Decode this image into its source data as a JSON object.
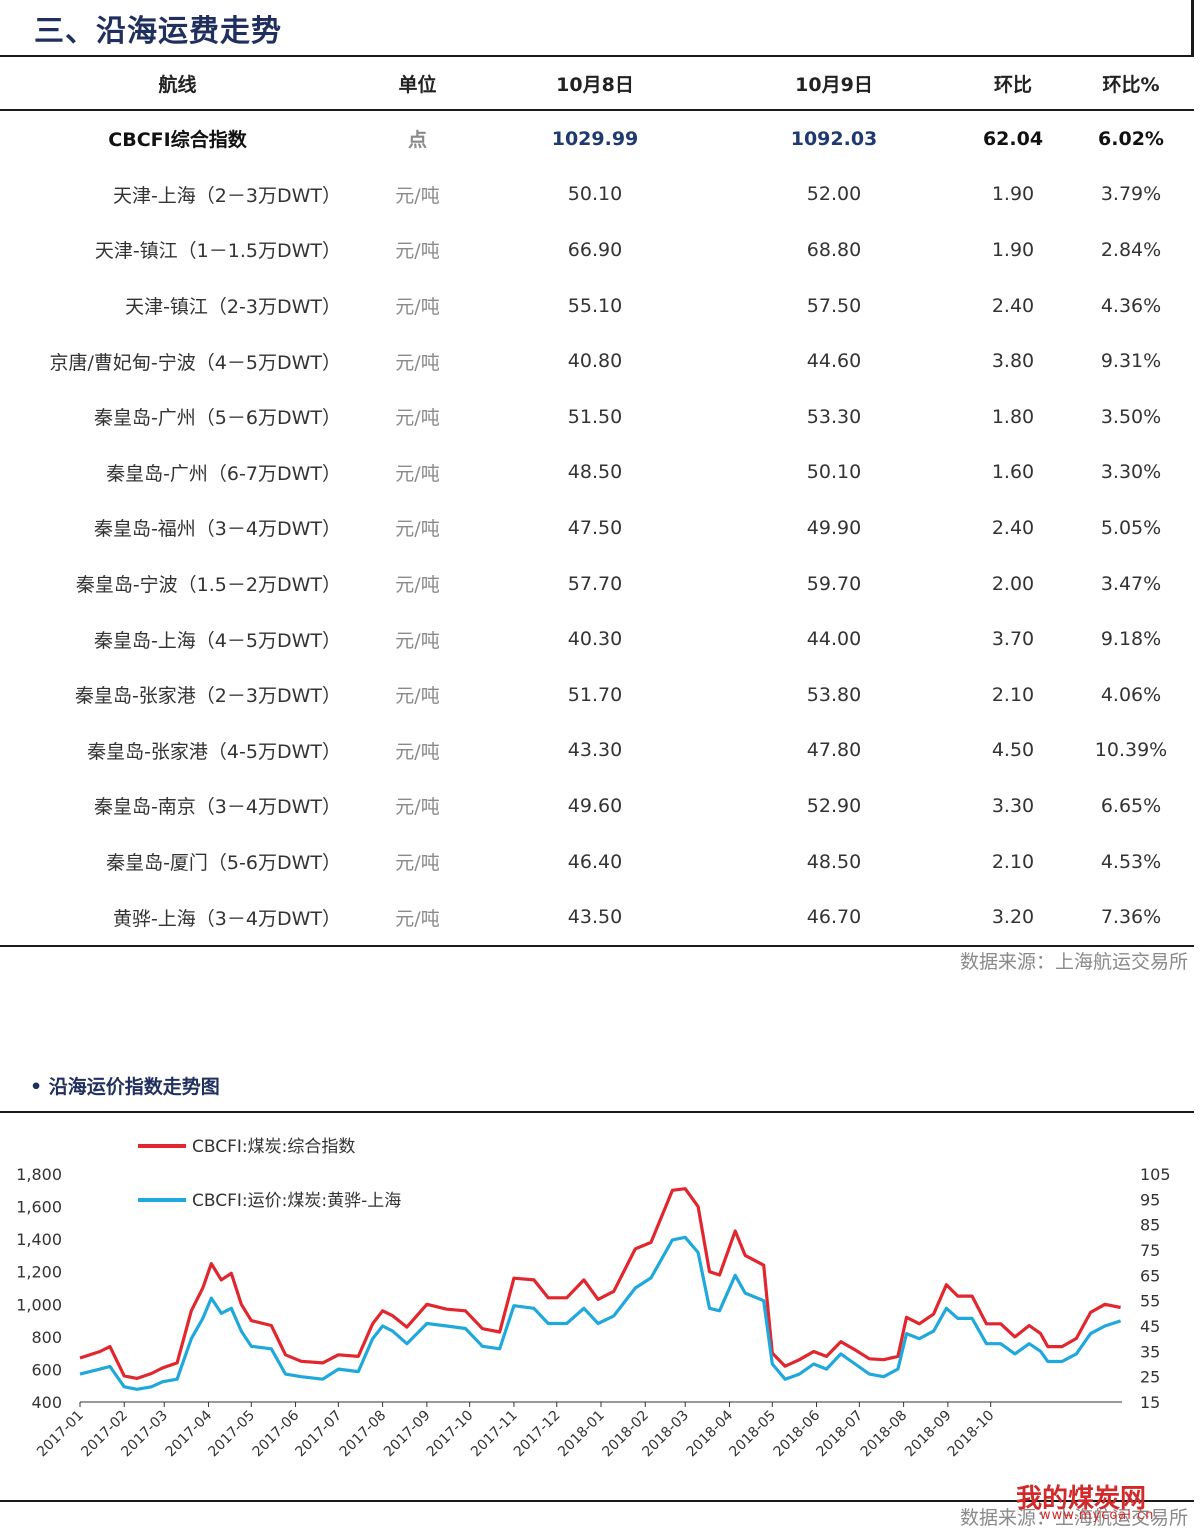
{
  "section_title": "三、沿海运费走势",
  "table": {
    "headers": [
      "航线",
      "单位",
      "10月8日",
      "10月9日",
      "环比",
      "环比%"
    ],
    "index_row": [
      "CBCFI综合指数",
      "点",
      "1029.99",
      "1092.03",
      "62.04",
      "6.02%"
    ],
    "rows": [
      [
        "天津-上海（2－3万DWT）",
        "元/吨",
        "50.10",
        "52.00",
        "1.90",
        "3.79%"
      ],
      [
        "天津-镇江（1－1.5万DWT）",
        "元/吨",
        "66.90",
        "68.80",
        "1.90",
        "2.84%"
      ],
      [
        "天津-镇江（2-3万DWT）",
        "元/吨",
        "55.10",
        "57.50",
        "2.40",
        "4.36%"
      ],
      [
        "京唐/曹妃甸-宁波（4－5万DWT）",
        "元/吨",
        "40.80",
        "44.60",
        "3.80",
        "9.31%"
      ],
      [
        "秦皇岛-广州（5－6万DWT）",
        "元/吨",
        "51.50",
        "53.30",
        "1.80",
        "3.50%"
      ],
      [
        "秦皇岛-广州（6-7万DWT）",
        "元/吨",
        "48.50",
        "50.10",
        "1.60",
        "3.30%"
      ],
      [
        "秦皇岛-福州（3－4万DWT）",
        "元/吨",
        "47.50",
        "49.90",
        "2.40",
        "5.05%"
      ],
      [
        "秦皇岛-宁波（1.5－2万DWT）",
        "元/吨",
        "57.70",
        "59.70",
        "2.00",
        "3.47%"
      ],
      [
        "秦皇岛-上海（4－5万DWT）",
        "元/吨",
        "40.30",
        "44.00",
        "3.70",
        "9.18%"
      ],
      [
        "秦皇岛-张家港（2－3万DWT）",
        "元/吨",
        "51.70",
        "53.80",
        "2.10",
        "4.06%"
      ],
      [
        "秦皇岛-张家港（4-5万DWT）",
        "元/吨",
        "43.30",
        "47.80",
        "4.50",
        "10.39%"
      ],
      [
        "秦皇岛-南京（3－4万DWT）",
        "元/吨",
        "49.60",
        "52.90",
        "3.30",
        "6.65%"
      ],
      [
        "秦皇岛-厦门（5-6万DWT）",
        "元/吨",
        "46.40",
        "48.50",
        "2.10",
        "4.53%"
      ],
      [
        "黄骅-上海（3－4万DWT）",
        "元/吨",
        "43.50",
        "46.70",
        "3.20",
        "7.36%"
      ]
    ]
  },
  "source_text": "数据来源：上海航运交易所",
  "chart_title": "• 沿海运价指数走势图",
  "watermark": {
    "text": "我的煤炭网",
    "sub": "www.mycoal.cn"
  },
  "chart_data": {
    "type": "line",
    "x": [
      "2017-01",
      "2017-02",
      "2017-03",
      "2017-04",
      "2017-05",
      "2017-06",
      "2017-07",
      "2017-08",
      "2017-09",
      "2017-10",
      "2017-11",
      "2017-12",
      "2018-01",
      "2018-02",
      "2018-03",
      "2018-04",
      "2018-05",
      "2018-06",
      "2018-07",
      "2018-08",
      "2018-09",
      "2018-10"
    ],
    "x_tick_labels": [
      "2017-01",
      "2017-02",
      "2017-03",
      "2017-04",
      "2017-05",
      "2017-06",
      "2017-07",
      "2017-08",
      "2017-09",
      "2017-10",
      "2017-11",
      "2017-12",
      "2018-01",
      "2018-02",
      "2018-03",
      "2018-04",
      "2018-05",
      "2018-06",
      "2018-07",
      "2018-08",
      "2018-09",
      "2018-10"
    ],
    "y_left_ticks": [
      "1,800",
      "1,600",
      "1,400",
      "1,200",
      "1,000",
      "800",
      "600",
      "400"
    ],
    "y_right_ticks": [
      "105",
      "95",
      "85",
      "75",
      "65",
      "55",
      "45",
      "35",
      "25",
      "15"
    ],
    "ylim_left": [
      400,
      1800
    ],
    "ylim_right": [
      15,
      105
    ],
    "legend_position": "top-left",
    "grid": false,
    "series": [
      {
        "name": "CBCFI:煤炭:综合指数",
        "axis": "left",
        "color": "#e1262d",
        "points": [
          [
            "2017-01-01",
            670
          ],
          [
            "2017-01-15",
            710
          ],
          [
            "2017-01-22",
            740
          ],
          [
            "2017-02-01",
            560
          ],
          [
            "2017-02-10",
            545
          ],
          [
            "2017-02-20",
            575
          ],
          [
            "2017-02-28",
            610
          ],
          [
            "2017-03-10",
            640
          ],
          [
            "2017-03-20",
            960
          ],
          [
            "2017-03-28",
            1100
          ],
          [
            "2017-04-03",
            1250
          ],
          [
            "2017-04-10",
            1150
          ],
          [
            "2017-04-17",
            1190
          ],
          [
            "2017-04-24",
            1000
          ],
          [
            "2017-05-01",
            900
          ],
          [
            "2017-05-15",
            870
          ],
          [
            "2017-05-25",
            690
          ],
          [
            "2017-06-05",
            650
          ],
          [
            "2017-06-20",
            640
          ],
          [
            "2017-07-01",
            690
          ],
          [
            "2017-07-15",
            680
          ],
          [
            "2017-07-25",
            880
          ],
          [
            "2017-08-01",
            960
          ],
          [
            "2017-08-08",
            930
          ],
          [
            "2017-08-18",
            860
          ],
          [
            "2017-09-01",
            1000
          ],
          [
            "2017-09-15",
            970
          ],
          [
            "2017-09-28",
            960
          ],
          [
            "2017-10-10",
            850
          ],
          [
            "2017-10-22",
            830
          ],
          [
            "2017-11-01",
            1160
          ],
          [
            "2017-11-15",
            1150
          ],
          [
            "2017-11-25",
            1040
          ],
          [
            "2017-12-08",
            1040
          ],
          [
            "2017-12-20",
            1150
          ],
          [
            "2017-12-30",
            1030
          ],
          [
            "2018-01-10",
            1080
          ],
          [
            "2018-01-25",
            1340
          ],
          [
            "2018-02-05",
            1380
          ],
          [
            "2018-02-20",
            1700
          ],
          [
            "2018-03-01",
            1710
          ],
          [
            "2018-03-10",
            1600
          ],
          [
            "2018-03-18",
            1200
          ],
          [
            "2018-03-25",
            1180
          ],
          [
            "2018-04-05",
            1450
          ],
          [
            "2018-04-12",
            1300
          ],
          [
            "2018-04-25",
            1240
          ],
          [
            "2018-05-01",
            700
          ],
          [
            "2018-05-10",
            620
          ],
          [
            "2018-05-20",
            660
          ],
          [
            "2018-05-30",
            710
          ],
          [
            "2018-06-08",
            680
          ],
          [
            "2018-06-18",
            770
          ],
          [
            "2018-06-28",
            720
          ],
          [
            "2018-07-08",
            665
          ],
          [
            "2018-07-18",
            660
          ],
          [
            "2018-07-28",
            680
          ],
          [
            "2018-08-03",
            920
          ],
          [
            "2018-08-12",
            880
          ],
          [
            "2018-08-22",
            940
          ],
          [
            "2018-08-31",
            1120
          ],
          [
            "2018-09-08",
            1050
          ],
          [
            "2018-09-18",
            1050
          ],
          [
            "2018-09-28",
            880
          ],
          [
            "2018-10-08",
            880
          ],
          [
            "2018-10-18",
            800
          ],
          [
            "2018-10-28",
            870
          ],
          [
            "2018-11-05",
            820
          ],
          [
            "2018-11-10",
            740
          ],
          [
            "2018-11-20",
            740
          ],
          [
            "2018-11-30",
            790
          ],
          [
            "2018-12-10",
            950
          ],
          [
            "2018-12-20",
            1000
          ],
          [
            "2018-12-31",
            980
          ]
        ]
      },
      {
        "name": "CBCFI:运价:煤炭:黄骅-上海",
        "axis": "right",
        "color": "#1ea8dc",
        "points": [
          [
            "2017-01-01",
            26
          ],
          [
            "2017-01-15",
            28
          ],
          [
            "2017-01-22",
            29
          ],
          [
            "2017-02-01",
            21
          ],
          [
            "2017-02-10",
            20
          ],
          [
            "2017-02-20",
            21
          ],
          [
            "2017-02-28",
            23
          ],
          [
            "2017-03-10",
            24
          ],
          [
            "2017-03-20",
            40
          ],
          [
            "2017-03-28",
            48
          ],
          [
            "2017-04-03",
            56
          ],
          [
            "2017-04-10",
            50
          ],
          [
            "2017-04-17",
            52
          ],
          [
            "2017-04-24",
            43
          ],
          [
            "2017-05-01",
            37
          ],
          [
            "2017-05-15",
            36
          ],
          [
            "2017-05-25",
            26
          ],
          [
            "2017-06-05",
            25
          ],
          [
            "2017-06-20",
            24
          ],
          [
            "2017-07-01",
            28
          ],
          [
            "2017-07-15",
            27
          ],
          [
            "2017-07-25",
            40
          ],
          [
            "2017-08-01",
            45
          ],
          [
            "2017-08-08",
            43
          ],
          [
            "2017-08-18",
            38
          ],
          [
            "2017-09-01",
            46
          ],
          [
            "2017-09-15",
            45
          ],
          [
            "2017-09-28",
            44
          ],
          [
            "2017-10-10",
            37
          ],
          [
            "2017-10-22",
            36
          ],
          [
            "2017-11-01",
            53
          ],
          [
            "2017-11-15",
            52
          ],
          [
            "2017-11-25",
            46
          ],
          [
            "2017-12-08",
            46
          ],
          [
            "2017-12-20",
            52
          ],
          [
            "2017-12-30",
            46
          ],
          [
            "2018-01-10",
            49
          ],
          [
            "2018-01-25",
            60
          ],
          [
            "2018-02-05",
            64
          ],
          [
            "2018-02-20",
            79
          ],
          [
            "2018-03-01",
            80
          ],
          [
            "2018-03-10",
            74
          ],
          [
            "2018-03-18",
            52
          ],
          [
            "2018-03-25",
            51
          ],
          [
            "2018-04-05",
            65
          ],
          [
            "2018-04-12",
            58
          ],
          [
            "2018-04-25",
            55
          ],
          [
            "2018-05-01",
            30
          ],
          [
            "2018-05-10",
            24
          ],
          [
            "2018-05-20",
            26
          ],
          [
            "2018-05-30",
            30
          ],
          [
            "2018-06-08",
            28
          ],
          [
            "2018-06-18",
            34
          ],
          [
            "2018-06-28",
            30
          ],
          [
            "2018-07-08",
            26
          ],
          [
            "2018-07-18",
            25
          ],
          [
            "2018-07-28",
            28
          ],
          [
            "2018-08-03",
            42
          ],
          [
            "2018-08-12",
            40
          ],
          [
            "2018-08-22",
            43
          ],
          [
            "2018-08-31",
            52
          ],
          [
            "2018-09-08",
            48
          ],
          [
            "2018-09-18",
            48
          ],
          [
            "2018-09-28",
            38
          ],
          [
            "2018-10-08",
            38
          ],
          [
            "2018-10-18",
            34
          ],
          [
            "2018-10-28",
            38
          ],
          [
            "2018-11-05",
            35
          ],
          [
            "2018-11-10",
            31
          ],
          [
            "2018-11-20",
            31
          ],
          [
            "2018-11-30",
            34
          ],
          [
            "2018-12-10",
            42
          ],
          [
            "2018-12-20",
            45
          ],
          [
            "2018-12-31",
            47
          ]
        ]
      }
    ]
  }
}
